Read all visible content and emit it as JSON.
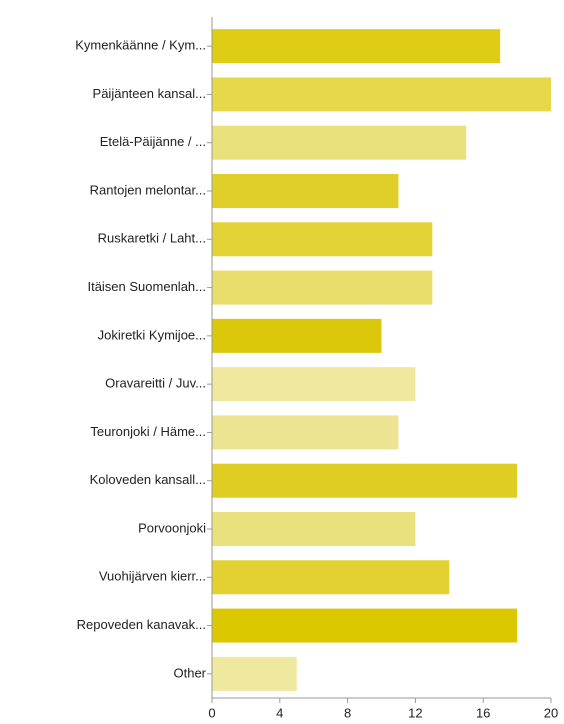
{
  "chart_data": {
    "type": "barh",
    "categories": [
      "Kymenkäänne / Kym...",
      "Päijänteen kansal...",
      "Etelä-Päijänne / ...",
      "Rantojen melontar...",
      "Ruskaretki / Laht...",
      "Itäisen Suomenlah...",
      "Jokiretki Kymijoe...",
      "Oravareitti / Juv...",
      "Teuronjoki / Häme...",
      "Koloveden kansall...",
      "Porvoonjoki",
      "Vuohijärven kierr...",
      "Repoveden kanavak...",
      "Other"
    ],
    "values": [
      17,
      20,
      15,
      11,
      13,
      13,
      10,
      12,
      11,
      18,
      12,
      14,
      18,
      5
    ],
    "colors": [
      "#dfcc14",
      "#e6d84a",
      "#ebe17c",
      "#e0cf2a",
      "#e3d337",
      "#e9dd6b",
      "#dcc80a",
      "#efe89e",
      "#ede491",
      "#e0cd24",
      "#eae07d",
      "#e2d130",
      "#dbc800",
      "#efe9a0"
    ],
    "xlim": [
      0,
      20
    ],
    "xticks": [
      0,
      4,
      8,
      12,
      16,
      20
    ]
  }
}
